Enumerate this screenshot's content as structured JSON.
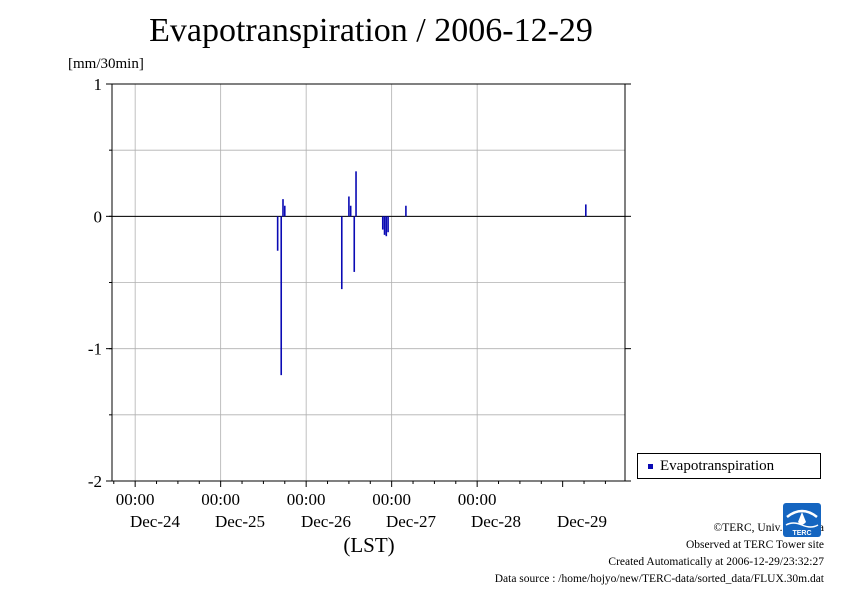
{
  "chart_data": {
    "type": "bar",
    "title": "Evapotranspiration / 2006-12-29",
    "ylabel": "[mm/30min]",
    "xlabel": "(LST)",
    "ylim": [
      -2,
      1
    ],
    "y_ticks": [
      "1",
      "0",
      "-1",
      "-2"
    ],
    "x_time_labels": [
      "00:00",
      "00:00",
      "00:00",
      "00:00",
      "00:00"
    ],
    "x_date_labels": [
      "Dec-24",
      "Dec-25",
      "Dec-26",
      "Dec-27",
      "Dec-28",
      "Dec-29"
    ],
    "grid": true,
    "legend_position": "bottom-right",
    "series": [
      {
        "name": "Evapotranspiration",
        "color": "#0a0ab4",
        "x": [
          "2006-12-25 16:00",
          "2006-12-25 17:00",
          "2006-12-25 17:30",
          "2006-12-25 18:00",
          "2006-12-26 10:00",
          "2006-12-26 12:00",
          "2006-12-26 12:30",
          "2006-12-26 13:30",
          "2006-12-26 14:00",
          "2006-12-26 21:30",
          "2006-12-26 22:00",
          "2006-12-26 22:30",
          "2006-12-26 23:00",
          "2006-12-27 04:00",
          "2006-12-29 06:30"
        ],
        "values": [
          -0.26,
          -1.2,
          0.13,
          0.08,
          -0.55,
          0.15,
          0.08,
          -0.42,
          0.34,
          -0.1,
          -0.14,
          -0.15,
          -0.12,
          0.08,
          0.09
        ]
      }
    ]
  },
  "legend": {
    "label": "Evapotranspiration"
  },
  "footer": {
    "copyright": "©TERC, Univ. Tsukuba",
    "observed": "Observed at TERC Tower site",
    "created": "Created Automatically at 2006-12-29/23:32:27",
    "source": "Data source : /home/hojyo/new/TERC-data/sorted_data/FLUX.30m.dat"
  },
  "logo": {
    "text": "TERC",
    "color": "#1565c0"
  }
}
